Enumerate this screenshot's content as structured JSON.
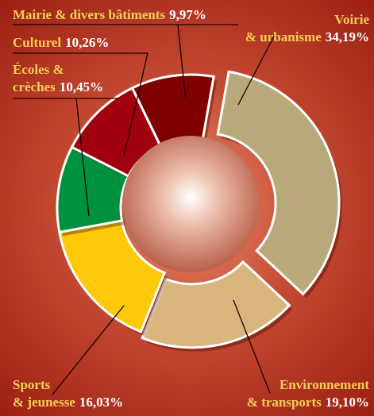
{
  "chart_data": {
    "type": "donut",
    "categories": [
      "Voirie\n& urbanisme",
      "Environnement\n& transports",
      "Sports\n& jeunesse",
      "Écoles &\ncrèches",
      "Culturel",
      "Mairie & divers bâtiments"
    ],
    "values": [
      34.19,
      19.1,
      16.03,
      10.45,
      10.26,
      9.97
    ],
    "value_labels": [
      "34,19%",
      "19,10%",
      "16,03%",
      "10,45%",
      "10,26%",
      "9,97%"
    ],
    "colors": [
      "#b9a97a",
      "#d9b57d",
      "#ffc90a",
      "#00913f",
      "#a1000f",
      "#7f0000"
    ]
  }
}
